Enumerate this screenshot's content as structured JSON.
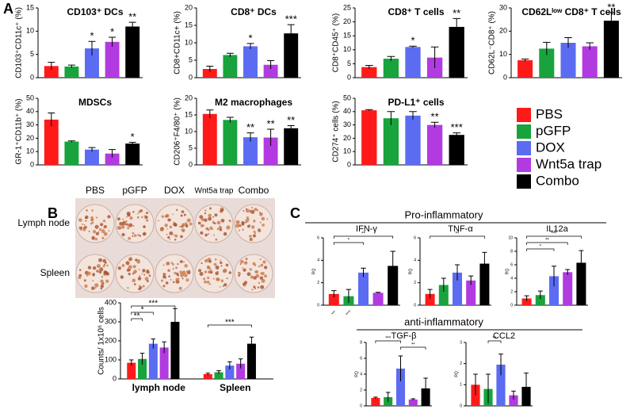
{
  "panel_labels": [
    "A",
    "B",
    "C"
  ],
  "legend": {
    "labels": [
      "PBS",
      "pGFP",
      "DOX",
      "Wnt5a trap",
      "Combo"
    ],
    "colors": [
      "#ff1a1a",
      "#18a33c",
      "#5b6cf2",
      "#b13be0",
      "#000000"
    ]
  },
  "photo_grid": {
    "columns": [
      "PBS",
      "pGFP",
      "DOX",
      "Wnt5a trap",
      "Combo"
    ],
    "rows": [
      "Lymph node",
      "Spleen"
    ]
  },
  "section_titles": [
    "Pro-inflammatory",
    "anti-inflammatory"
  ],
  "chart_data": [
    {
      "type": "bar",
      "title": "CD103⁺ DCs",
      "ylabel": "CD103⁺CD11c⁺ (%)",
      "values": [
        2.5,
        2.4,
        6.3,
        7.7,
        11.0
      ],
      "errors": [
        0.8,
        0.3,
        1.5,
        1.0,
        0.9
      ],
      "significance": [
        null,
        null,
        "*",
        "*",
        "**"
      ],
      "ylim": [
        0,
        15
      ],
      "yticks": [
        0,
        5,
        10,
        15
      ]
    },
    {
      "type": "bar",
      "title": "CD8⁺ DCs",
      "ylabel": "CD8+CD11c+ (%)",
      "values": [
        2.5,
        6.5,
        9.0,
        3.7,
        12.7
      ],
      "errors": [
        0.8,
        0.5,
        0.8,
        1.2,
        2.5
      ],
      "significance": [
        null,
        null,
        "*",
        null,
        "***"
      ],
      "ylim": [
        0,
        20
      ],
      "yticks": [
        0,
        5,
        10,
        15,
        20
      ]
    },
    {
      "type": "bar",
      "title": "CD8⁺ T cells",
      "ylabel": "CD8⁺CD45⁺ (%)",
      "values": [
        3.8,
        6.8,
        11.0,
        7.2,
        18.2
      ],
      "errors": [
        0.6,
        0.8,
        0.3,
        3.8,
        3.0
      ],
      "significance": [
        null,
        null,
        "*",
        null,
        "**"
      ],
      "ylim": [
        0,
        25
      ],
      "yticks": [
        0,
        5,
        10,
        15,
        20,
        25
      ]
    },
    {
      "type": "bar",
      "title": "CD62Lˡᵒʷ CD8⁺ T cells",
      "ylabel": "CD62L⁻CD8⁺ (%)",
      "values": [
        7.5,
        12.5,
        15.0,
        13.5,
        24.5
      ],
      "errors": [
        0.5,
        2.7,
        2.2,
        1.5,
        3.5
      ],
      "significance": [
        null,
        null,
        null,
        null,
        "**"
      ],
      "ylim": [
        0,
        30
      ],
      "yticks": [
        0,
        10,
        20,
        30
      ]
    },
    {
      "type": "bar",
      "title": "MDSCs",
      "ylabel": "GR-1⁺CD11b⁺ (%)",
      "values": [
        34,
        17.5,
        11.5,
        8.5,
        16
      ],
      "errors": [
        5,
        0.5,
        1.5,
        3,
        1
      ],
      "significance": [
        null,
        null,
        null,
        null,
        "*"
      ],
      "ylim": [
        0,
        50
      ],
      "yticks": [
        0,
        10,
        20,
        30,
        40,
        50
      ]
    },
    {
      "type": "bar",
      "title": "M2 macrophages",
      "ylabel": "CD206⁺F4/80⁺ (%)",
      "values": [
        15.3,
        13.5,
        8.3,
        8.2,
        11.0
      ],
      "errors": [
        1.2,
        0.8,
        1.3,
        2.5,
        0.8
      ],
      "significance": [
        null,
        null,
        "**",
        "**",
        "**"
      ],
      "ylim": [
        0,
        20
      ],
      "yticks": [
        0,
        5,
        10,
        15,
        20
      ]
    },
    {
      "type": "bar",
      "title": "PD-L1⁺ cells",
      "ylabel": "CD274⁺ cells (%)",
      "values": [
        41,
        35,
        37,
        30,
        22.5
      ],
      "errors": [
        0.5,
        5,
        3,
        2,
        1.5
      ],
      "significance": [
        null,
        null,
        null,
        "**",
        "***"
      ],
      "ylim": [
        0,
        50
      ],
      "yticks": [
        0,
        10,
        20,
        30,
        40,
        50
      ]
    },
    {
      "type": "grouped_bar",
      "ylabel": "Counts/ 1x10⁶ cells",
      "categories": [
        "lymph node",
        "Spleen"
      ],
      "series": [
        {
          "name": "PBS",
          "values": [
            85,
            25
          ],
          "errors": [
            15,
            5
          ]
        },
        {
          "name": "pGFP",
          "values": [
            105,
            35
          ],
          "errors": [
            30,
            8
          ]
        },
        {
          "name": "DOX",
          "values": [
            185,
            70
          ],
          "errors": [
            25,
            20
          ]
        },
        {
          "name": "Wnt5a trap",
          "values": [
            165,
            80
          ],
          "errors": [
            30,
            25
          ]
        },
        {
          "name": "Combo",
          "values": [
            300,
            185
          ],
          "errors": [
            70,
            35
          ]
        }
      ],
      "brackets": [
        {
          "label": "***",
          "group": 0,
          "from": 0,
          "to": 4
        },
        {
          "label": "*",
          "group": 0,
          "from": 0,
          "to": 2
        },
        {
          "label": "**",
          "group": 0,
          "from": 0,
          "to": 1
        },
        {
          "label": "***",
          "group": 1,
          "from": 0,
          "to": 4
        }
      ],
      "ylim": [
        0,
        400
      ],
      "yticks": [
        0,
        100,
        200,
        300,
        400
      ]
    },
    {
      "type": "bar",
      "title": "IFN-γ",
      "ylabel": "RQ",
      "categories": [
        "***",
        "****",
        null,
        null,
        null
      ],
      "values": [
        1.0,
        0.8,
        2.9,
        1.1,
        3.5
      ],
      "errors": [
        0.3,
        0.6,
        0.4,
        0.05,
        1.3
      ],
      "brackets": [
        {
          "label": "**",
          "from": 0,
          "to": 4
        },
        {
          "label": "*",
          "from": 0,
          "to": 2
        }
      ],
      "ylim": [
        0,
        6
      ],
      "yticks": [
        0,
        2,
        4,
        6
      ]
    },
    {
      "type": "bar",
      "title": "TNF-α",
      "ylabel": "RQ",
      "values": [
        1.0,
        1.8,
        2.9,
        2.2,
        3.7
      ],
      "errors": [
        0.4,
        0.6,
        0.7,
        0.4,
        1.0
      ],
      "brackets": [
        {
          "label": "**",
          "from": 0,
          "to": 4
        }
      ],
      "ylim": [
        0,
        6
      ],
      "yticks": [
        0,
        2,
        4,
        6
      ]
    },
    {
      "type": "bar",
      "title": "IL12a",
      "ylabel": "RQ",
      "values": [
        1.0,
        1.5,
        4.3,
        4.9,
        6.3
      ],
      "errors": [
        0.4,
        0.6,
        1.5,
        0.4,
        1.8
      ],
      "brackets": [
        {
          "label": "***",
          "from": 0,
          "to": 4
        },
        {
          "label": "**",
          "from": 0,
          "to": 3
        },
        {
          "label": "*",
          "from": 0,
          "to": 2
        }
      ],
      "ylim": [
        0,
        10
      ],
      "yticks": [
        0,
        2,
        4,
        6,
        8,
        10
      ]
    },
    {
      "type": "bar",
      "title": "TGF-β",
      "ylabel": "RQ",
      "values": [
        1.0,
        1.1,
        4.7,
        0.8,
        2.2
      ],
      "errors": [
        0.1,
        0.6,
        1.6,
        0.1,
        1.3
      ],
      "brackets": [
        {
          "label": "***",
          "from": 0,
          "to": 2
        },
        {
          "label": "**",
          "from": 2,
          "to": 4
        }
      ],
      "ylim": [
        0,
        8
      ],
      "yticks": [
        0,
        2,
        4,
        6,
        8
      ]
    },
    {
      "type": "bar",
      "title": "CCL2",
      "ylabel": "RQ",
      "values": [
        1.0,
        0.8,
        1.95,
        0.5,
        0.9
      ],
      "errors": [
        0.5,
        0.7,
        0.5,
        0.2,
        0.65
      ],
      "brackets": [
        {
          "label": "**",
          "from": 1,
          "to": 2
        }
      ],
      "ylim": [
        0,
        3
      ],
      "yticks": [
        0,
        1,
        2,
        3
      ]
    }
  ]
}
